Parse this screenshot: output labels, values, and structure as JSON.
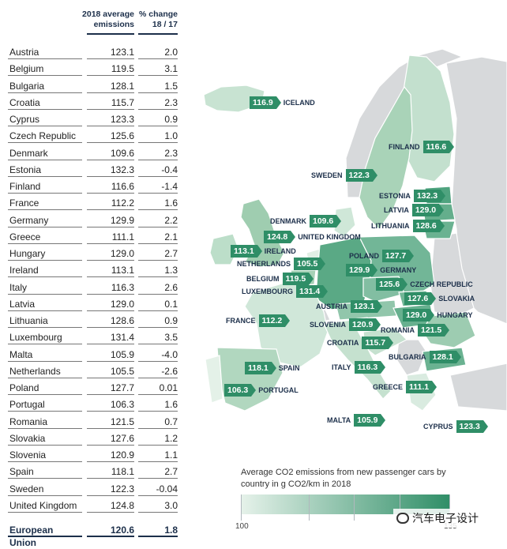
{
  "table": {
    "headers": {
      "emissions": "2018 average emissions",
      "change": "% change 18 / 17"
    },
    "rows": [
      {
        "country": "Austria",
        "emissions": "123.1",
        "change": "2.0"
      },
      {
        "country": "Belgium",
        "emissions": "119.5",
        "change": "3.1"
      },
      {
        "country": "Bulgaria",
        "emissions": "128.1",
        "change": "1.5"
      },
      {
        "country": "Croatia",
        "emissions": "115.7",
        "change": "2.3"
      },
      {
        "country": "Cyprus",
        "emissions": "123.3",
        "change": "0.9"
      },
      {
        "country": "Czech Republic",
        "emissions": "125.6",
        "change": "1.0"
      },
      {
        "country": "Denmark",
        "emissions": "109.6",
        "change": "2.3"
      },
      {
        "country": "Estonia",
        "emissions": "132.3",
        "change": "-0.4"
      },
      {
        "country": "Finland",
        "emissions": "116.6",
        "change": "-1.4"
      },
      {
        "country": "France",
        "emissions": "112.2",
        "change": "1.6"
      },
      {
        "country": "Germany",
        "emissions": "129.9",
        "change": "2.2"
      },
      {
        "country": "Greece",
        "emissions": "111.1",
        "change": "2.1"
      },
      {
        "country": "Hungary",
        "emissions": "129.0",
        "change": "2.7"
      },
      {
        "country": "Ireland",
        "emissions": "113.1",
        "change": "1.3"
      },
      {
        "country": "Italy",
        "emissions": "116.3",
        "change": "2.6"
      },
      {
        "country": "Latvia",
        "emissions": "129.0",
        "change": "0.1"
      },
      {
        "country": "Lithuania",
        "emissions": "128.6",
        "change": "0.9"
      },
      {
        "country": "Luxembourg",
        "emissions": "131.4",
        "change": "3.5"
      },
      {
        "country": "Malta",
        "emissions": "105.9",
        "change": "-4.0"
      },
      {
        "country": "Netherlands",
        "emissions": "105.5",
        "change": "-2.6"
      },
      {
        "country": "Poland",
        "emissions": "127.7",
        "change": "0.01"
      },
      {
        "country": "Portugal",
        "emissions": "106.3",
        "change": "1.6"
      },
      {
        "country": "Romania",
        "emissions": "121.5",
        "change": "0.7"
      },
      {
        "country": "Slovakia",
        "emissions": "127.6",
        "change": "1.2"
      },
      {
        "country": "Slovenia",
        "emissions": "120.9",
        "change": "1.1"
      },
      {
        "country": "Spain",
        "emissions": "118.1",
        "change": "2.7"
      },
      {
        "country": "Sweden",
        "emissions": "122.3",
        "change": "-0.04"
      },
      {
        "country": "United Kingdom",
        "emissions": "124.8",
        "change": "3.0"
      }
    ],
    "total": {
      "country": "European Union",
      "emissions": "120.6",
      "change": "1.8"
    }
  },
  "map_labels": [
    {
      "name": "ICELAND",
      "value": "116.9"
    },
    {
      "name": "FINLAND",
      "value": "116.6"
    },
    {
      "name": "SWEDEN",
      "value": "122.3"
    },
    {
      "name": "ESTONIA",
      "value": "132.3"
    },
    {
      "name": "LATVIA",
      "value": "129.0"
    },
    {
      "name": "LITHUANIA",
      "value": "128.6"
    },
    {
      "name": "DENMARK",
      "value": "109.6"
    },
    {
      "name": "UNITED KINGDOM",
      "value": "124.8"
    },
    {
      "name": "IRELAND",
      "value": "113.1"
    },
    {
      "name": "NETHERLANDS",
      "value": "105.5"
    },
    {
      "name": "POLAND",
      "value": "127.7"
    },
    {
      "name": "GERMANY",
      "value": "129.9"
    },
    {
      "name": "BELGIUM",
      "value": "119.5"
    },
    {
      "name": "CZECH REPUBLIC",
      "value": "125.6"
    },
    {
      "name": "LUXEMBOURG",
      "value": "131.4"
    },
    {
      "name": "SLOVAKIA",
      "value": "127.6"
    },
    {
      "name": "AUSTRIA",
      "value": "123.1"
    },
    {
      "name": "HUNGARY",
      "value": "129.0"
    },
    {
      "name": "FRANCE",
      "value": "112.2"
    },
    {
      "name": "SLOVENIA",
      "value": "120.9"
    },
    {
      "name": "ROMANIA",
      "value": "121.5"
    },
    {
      "name": "CROATIA",
      "value": "115.7"
    },
    {
      "name": "BULGARIA",
      "value": "128.1"
    },
    {
      "name": "SPAIN",
      "value": "118.1"
    },
    {
      "name": "ITALY",
      "value": "116.3"
    },
    {
      "name": "PORTUGAL",
      "value": "106.3"
    },
    {
      "name": "GREECE",
      "value": "111.1"
    },
    {
      "name": "MALTA",
      "value": "105.9"
    },
    {
      "name": "CYPRUS",
      "value": "123.3"
    }
  ],
  "legend": {
    "title": "Average CO2 emissions from new passenger cars by country in g CO2/km in 2018",
    "min_label": "100",
    "max_label": "135",
    "color_low": "#e6f2ea",
    "color_high": "#2f8e67"
  },
  "watermark": "汽车电子设计"
}
